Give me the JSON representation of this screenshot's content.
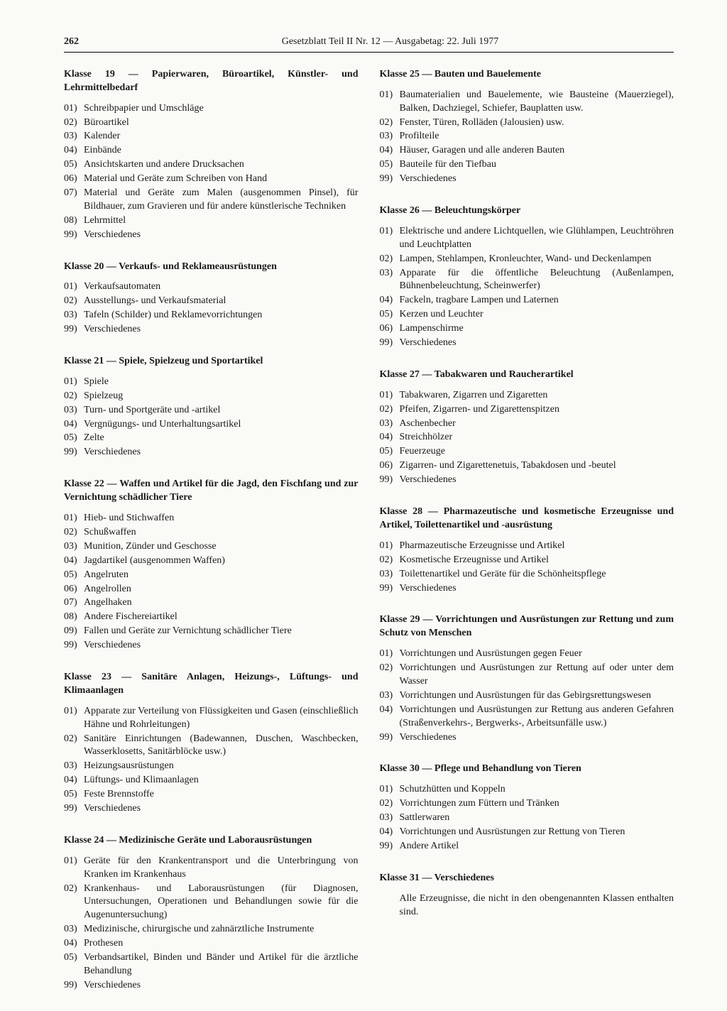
{
  "page_number": "262",
  "header": "Gesetzblatt Teil II Nr. 12 — Ausgabetag: 22. Juli 1977",
  "columns": [
    [
      {
        "title": "Klasse 19 — Papierwaren, Büroartikel, Künstler- und Lehrmittelbedarf",
        "items": [
          [
            "01)",
            "Schreibpapier und Umschläge"
          ],
          [
            "02)",
            "Büroartikel"
          ],
          [
            "03)",
            "Kalender"
          ],
          [
            "04)",
            "Einbände"
          ],
          [
            "05)",
            "Ansichtskarten und andere Drucksachen"
          ],
          [
            "06)",
            "Material und Geräte zum Schreiben von Hand"
          ],
          [
            "07)",
            "Material und Geräte zum Malen (ausgenommen Pinsel), für Bildhauer, zum Gravieren und für andere künstlerische Techniken"
          ],
          [
            "08)",
            "Lehrmittel"
          ],
          [
            "99)",
            "Verschiedenes"
          ]
        ]
      },
      {
        "title": "Klasse 20 — Verkaufs- und Reklameausrüstungen",
        "items": [
          [
            "01)",
            "Verkaufsautomaten"
          ],
          [
            "02)",
            "Ausstellungs- und Verkaufsmaterial"
          ],
          [
            "03)",
            "Tafeln (Schilder) und Reklamevorrichtungen"
          ],
          [
            "99)",
            "Verschiedenes"
          ]
        ]
      },
      {
        "title": "Klasse 21 — Spiele, Spielzeug und Sportartikel",
        "items": [
          [
            "01)",
            "Spiele"
          ],
          [
            "02)",
            "Spielzeug"
          ],
          [
            "03)",
            "Turn- und Sportgeräte und -artikel"
          ],
          [
            "04)",
            "Vergnügungs- und Unterhaltungsartikel"
          ],
          [
            "05)",
            "Zelte"
          ],
          [
            "99)",
            "Verschiedenes"
          ]
        ]
      },
      {
        "title": "Klasse 22 — Waffen und Artikel für die Jagd, den Fischfang und zur Vernichtung schädlicher Tiere",
        "items": [
          [
            "01)",
            "Hieb- und Stichwaffen"
          ],
          [
            "02)",
            "Schußwaffen"
          ],
          [
            "03)",
            "Munition, Zünder und Geschosse"
          ],
          [
            "04)",
            "Jagdartikel (ausgenommen Waffen)"
          ],
          [
            "05)",
            "Angelruten"
          ],
          [
            "06)",
            "Angelrollen"
          ],
          [
            "07)",
            "Angelhaken"
          ],
          [
            "08)",
            "Andere Fischereiartikel"
          ],
          [
            "09)",
            "Fallen und Geräte zur Vernichtung schädlicher Tiere"
          ],
          [
            "99)",
            "Verschiedenes"
          ]
        ]
      },
      {
        "title": "Klasse 23 — Sanitäre Anlagen, Heizungs-, Lüftungs- und Klimaanlagen",
        "items": [
          [
            "01)",
            "Apparate zur Verteilung von Flüssigkeiten und Gasen (einschließlich Hähne und Rohrleitungen)"
          ],
          [
            "02)",
            "Sanitäre Einrichtungen (Badewannen, Duschen, Waschbecken, Wasserklosetts, Sanitärblöcke usw.)"
          ],
          [
            "03)",
            "Heizungsausrüstungen"
          ],
          [
            "04)",
            "Lüftungs- und Klimaanlagen"
          ],
          [
            "05)",
            "Feste Brennstoffe"
          ],
          [
            "99)",
            "Verschiedenes"
          ]
        ]
      },
      {
        "title": "Klasse 24 — Medizinische Geräte und Laborausrüstungen",
        "items": [
          [
            "01)",
            "Geräte für den Krankentransport und die Unterbringung von Kranken im Krankenhaus"
          ],
          [
            "02)",
            "Krankenhaus- und Laborausrüstungen (für Diagnosen, Untersuchungen, Operationen und Behandlungen sowie für die Augenuntersuchung)"
          ],
          [
            "03)",
            "Medizinische, chirurgische und zahnärztliche Instrumente"
          ],
          [
            "04)",
            "Prothesen"
          ],
          [
            "05)",
            "Verbandsartikel, Binden und Bänder und Artikel für die ärztliche Behandlung"
          ],
          [
            "99)",
            "Verschiedenes"
          ]
        ]
      }
    ],
    [
      {
        "title": "Klasse 25 — Bauten und Bauelemente",
        "items": [
          [
            "01)",
            "Baumaterialien und Bauelemente, wie Bausteine (Mauerziegel), Balken, Dachziegel, Schiefer, Bauplatten usw."
          ],
          [
            "02)",
            "Fenster, Türen, Rolläden (Jalousien) usw."
          ],
          [
            "03)",
            "Profilteile"
          ],
          [
            "04)",
            "Häuser, Garagen und alle anderen Bauten"
          ],
          [
            "05)",
            "Bauteile für den Tiefbau"
          ],
          [
            "99)",
            "Verschiedenes"
          ]
        ]
      },
      {
        "title": "Klasse 26 — Beleuchtungskörper",
        "items": [
          [
            "01)",
            "Elektrische und andere Lichtquellen, wie Glühlampen, Leuchtröhren und Leuchtplatten"
          ],
          [
            "02)",
            "Lampen, Stehlampen, Kronleuchter, Wand- und Deckenlampen"
          ],
          [
            "03)",
            "Apparate für die öffentliche Beleuchtung (Außenlampen, Bühnenbeleuchtung, Scheinwerfer)"
          ],
          [
            "04)",
            "Fackeln, tragbare Lampen und Laternen"
          ],
          [
            "05)",
            "Kerzen und Leuchter"
          ],
          [
            "06)",
            "Lampenschirme"
          ],
          [
            "99)",
            "Verschiedenes"
          ]
        ]
      },
      {
        "title": "Klasse 27 — Tabakwaren und Raucherartikel",
        "items": [
          [
            "01)",
            "Tabakwaren, Zigarren und Zigaretten"
          ],
          [
            "02)",
            "Pfeifen, Zigarren- und Zigarettenspitzen"
          ],
          [
            "03)",
            "Aschenbecher"
          ],
          [
            "04)",
            "Streichhölzer"
          ],
          [
            "05)",
            "Feuerzeuge"
          ],
          [
            "06)",
            "Zigarren- und Zigarettenetuis, Tabakdosen und -beutel"
          ],
          [
            "99)",
            "Verschiedenes"
          ]
        ]
      },
      {
        "title": "Klasse 28 — Pharmazeutische und kosmetische Erzeugnisse und Artikel, Toilettenartikel und -ausrüstung",
        "items": [
          [
            "01)",
            "Pharmazeutische Erzeugnisse und Artikel"
          ],
          [
            "02)",
            "Kosmetische Erzeugnisse und Artikel"
          ],
          [
            "03)",
            "Toilettenartikel und Geräte für die Schönheitspflege"
          ],
          [
            "99)",
            "Verschiedenes"
          ]
        ]
      },
      {
        "title": "Klasse 29 — Vorrichtungen und Ausrüstungen zur Rettung und zum Schutz von Menschen",
        "items": [
          [
            "01)",
            "Vorrichtungen und Ausrüstungen gegen Feuer"
          ],
          [
            "02)",
            "Vorrichtungen und Ausrüstungen zur Rettung auf oder unter dem Wasser"
          ],
          [
            "03)",
            "Vorrichtungen und Ausrüstungen für das Gebirgsrettungswesen"
          ],
          [
            "04)",
            "Vorrichtungen und Ausrüstungen zur Rettung aus anderen Gefahren (Straßenverkehrs-, Bergwerks-, Arbeitsunfälle usw.)"
          ],
          [
            "99)",
            "Verschiedenes"
          ]
        ]
      },
      {
        "title": "Klasse 30 — Pflege und Behandlung von Tieren",
        "items": [
          [
            "01)",
            "Schutzhütten und Koppeln"
          ],
          [
            "02)",
            "Vorrichtungen zum Füttern und Tränken"
          ],
          [
            "03)",
            "Sattlerwaren"
          ],
          [
            "04)",
            "Vorrichtungen und Ausrüstungen zur Rettung von Tieren"
          ],
          [
            "99)",
            "Andere Artikel"
          ]
        ]
      },
      {
        "title": "Klasse 31 — Verschiedenes",
        "note": "Alle Erzeugnisse, die nicht in den obengenannten Klassen enthalten sind."
      }
    ]
  ]
}
